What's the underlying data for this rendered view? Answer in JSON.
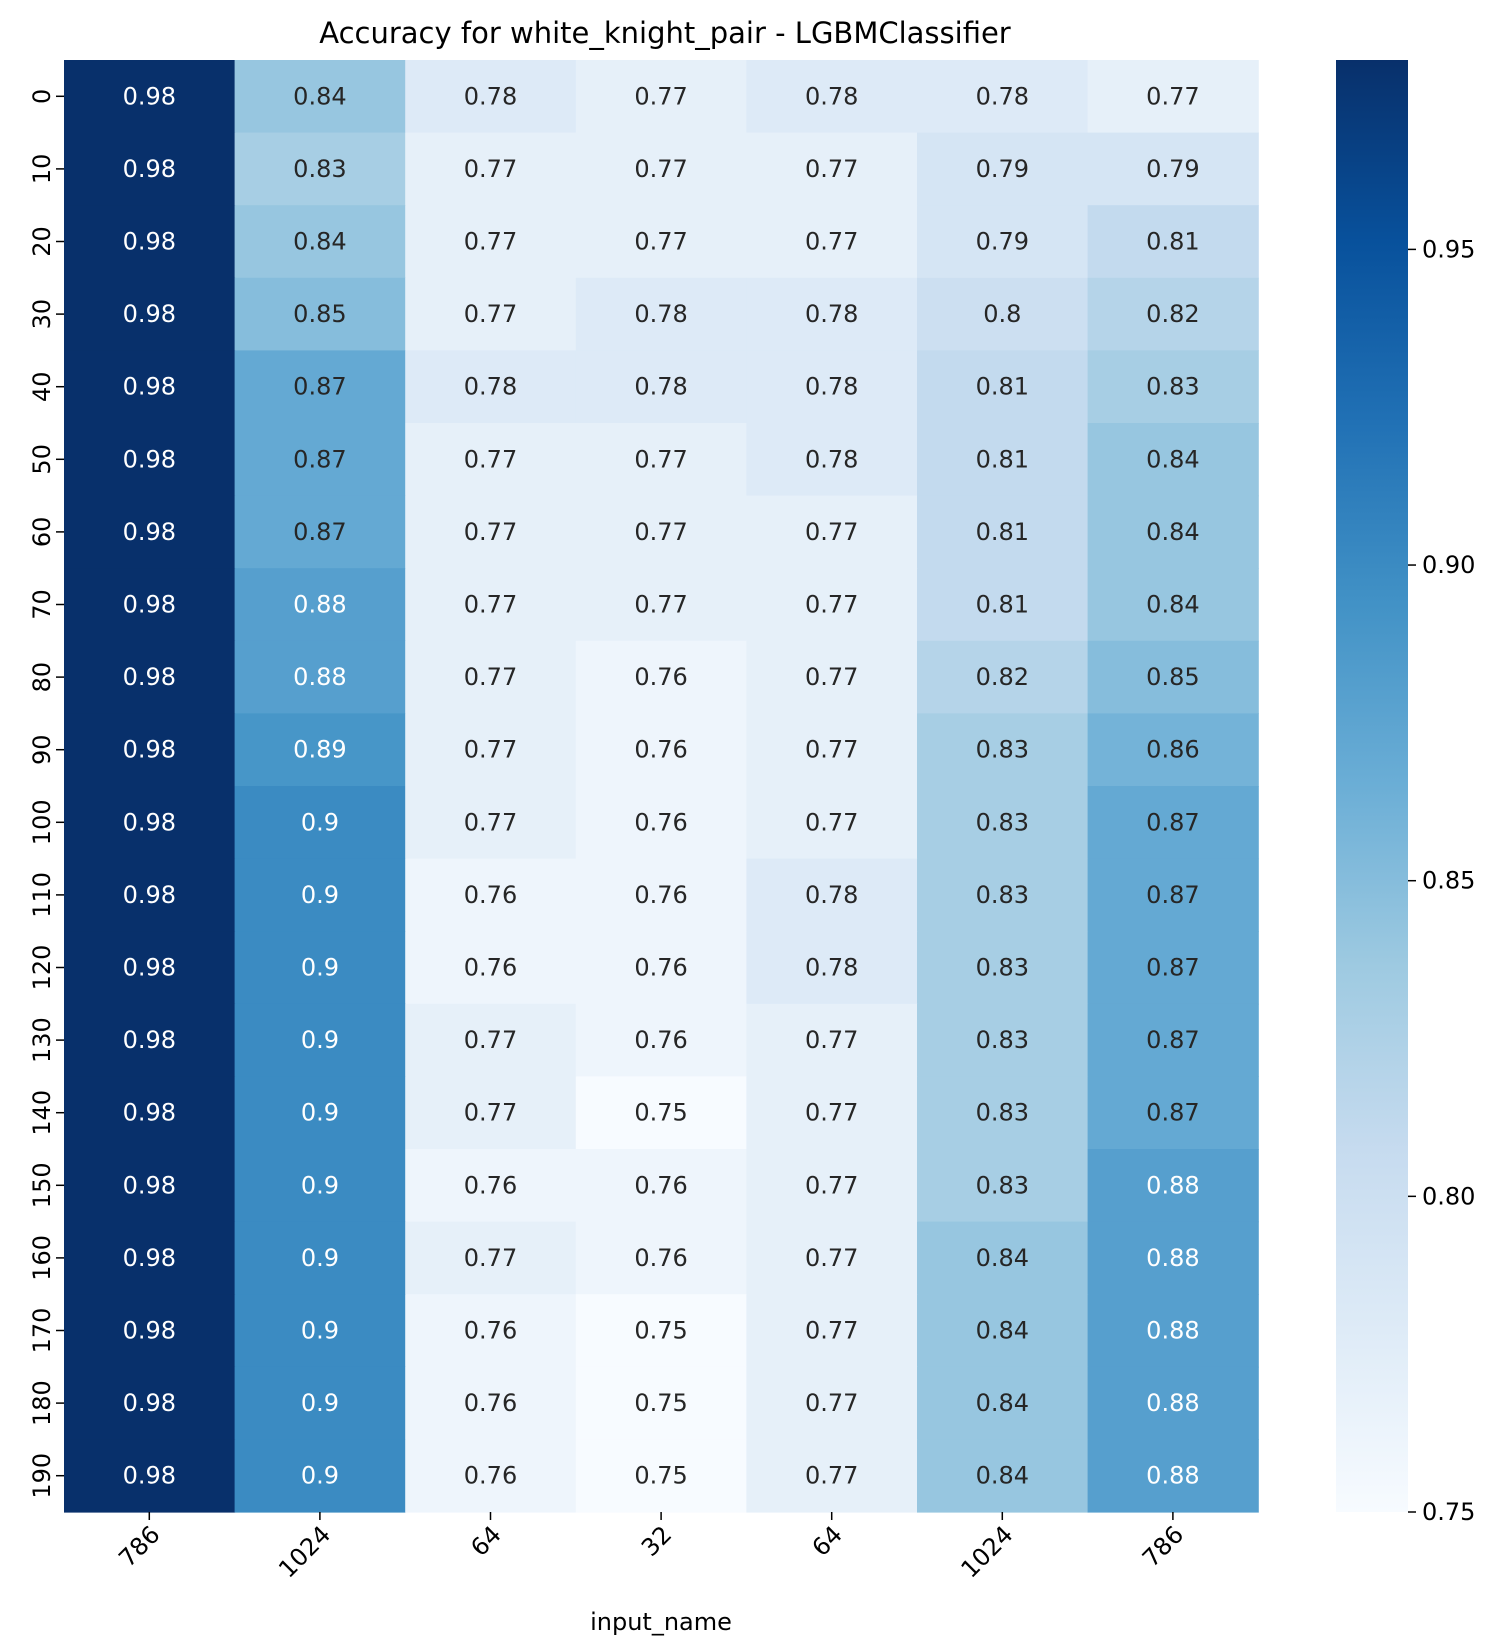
{
  "chart_data": {
    "type": "heatmap",
    "title": "Accuracy for white_knight_pair - LGBMClassifier",
    "xlabel": "input_name",
    "ylabel": "",
    "x_categories": [
      "786",
      "1024",
      "64",
      "32",
      "64",
      "1024",
      "786"
    ],
    "y_categories": [
      "0",
      "10",
      "20",
      "30",
      "40",
      "50",
      "60",
      "70",
      "80",
      "90",
      "100",
      "110",
      "120",
      "130",
      "140",
      "150",
      "160",
      "170",
      "180",
      "190"
    ],
    "values": [
      [
        0.98,
        0.84,
        0.78,
        0.77,
        0.78,
        0.78,
        0.77
      ],
      [
        0.98,
        0.83,
        0.77,
        0.77,
        0.77,
        0.79,
        0.79
      ],
      [
        0.98,
        0.84,
        0.77,
        0.77,
        0.77,
        0.79,
        0.81
      ],
      [
        0.98,
        0.85,
        0.77,
        0.78,
        0.78,
        0.8,
        0.82
      ],
      [
        0.98,
        0.87,
        0.78,
        0.78,
        0.78,
        0.81,
        0.83
      ],
      [
        0.98,
        0.87,
        0.77,
        0.77,
        0.78,
        0.81,
        0.84
      ],
      [
        0.98,
        0.87,
        0.77,
        0.77,
        0.77,
        0.81,
        0.84
      ],
      [
        0.98,
        0.88,
        0.77,
        0.77,
        0.77,
        0.81,
        0.84
      ],
      [
        0.98,
        0.88,
        0.77,
        0.76,
        0.77,
        0.82,
        0.85
      ],
      [
        0.98,
        0.89,
        0.77,
        0.76,
        0.77,
        0.83,
        0.86
      ],
      [
        0.98,
        0.9,
        0.77,
        0.76,
        0.77,
        0.83,
        0.87
      ],
      [
        0.98,
        0.9,
        0.76,
        0.76,
        0.78,
        0.83,
        0.87
      ],
      [
        0.98,
        0.9,
        0.76,
        0.76,
        0.78,
        0.83,
        0.87
      ],
      [
        0.98,
        0.9,
        0.77,
        0.76,
        0.77,
        0.83,
        0.87
      ],
      [
        0.98,
        0.9,
        0.77,
        0.75,
        0.77,
        0.83,
        0.87
      ],
      [
        0.98,
        0.9,
        0.76,
        0.76,
        0.77,
        0.83,
        0.88
      ],
      [
        0.98,
        0.9,
        0.77,
        0.76,
        0.77,
        0.84,
        0.88
      ],
      [
        0.98,
        0.9,
        0.76,
        0.75,
        0.77,
        0.84,
        0.88
      ],
      [
        0.98,
        0.9,
        0.76,
        0.75,
        0.77,
        0.84,
        0.88
      ],
      [
        0.98,
        0.9,
        0.76,
        0.75,
        0.77,
        0.84,
        0.88
      ]
    ],
    "colorbar": {
      "range": [
        0.75,
        0.98
      ],
      "ticks": [
        "0.75",
        "0.80",
        "0.85",
        "0.90",
        "0.95"
      ],
      "colormap": "Blues"
    },
    "grid": false,
    "annotations": "cell values"
  }
}
